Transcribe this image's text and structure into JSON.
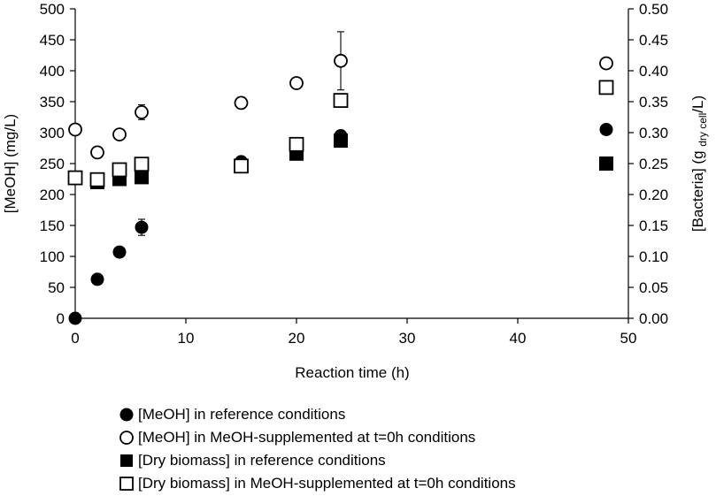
{
  "chart_data": {
    "type": "scatter",
    "xlabel": "Reaction time (h)",
    "ylabel_left": "[MeOH] (mg/L)",
    "ylabel_right_parts": [
      "[Bacteria] (g ",
      "dry cell",
      "/L)"
    ],
    "xlim": [
      0,
      50
    ],
    "ylim_left": [
      0,
      500
    ],
    "ylim_right": [
      0,
      0.5
    ],
    "x_ticks": [
      "0",
      "10",
      "20",
      "30",
      "40",
      "50"
    ],
    "y_left_ticks": [
      "0",
      "50",
      "100",
      "150",
      "200",
      "250",
      "300",
      "350",
      "400",
      "450",
      "500"
    ],
    "y_right_ticks": [
      "0.00",
      "0.05",
      "0.10",
      "0.15",
      "0.20",
      "0.25",
      "0.30",
      "0.35",
      "0.40",
      "0.45",
      "0.50"
    ],
    "series": [
      {
        "name": "[MeOH] in reference conditions",
        "marker": "circle",
        "filled": true,
        "axis": "left",
        "x": [
          0,
          2,
          4,
          6,
          15,
          24,
          48
        ],
        "y": [
          0,
          63,
          107,
          147,
          253,
          295,
          305
        ],
        "err": [
          0,
          0,
          0,
          13,
          0,
          0,
          0
        ]
      },
      {
        "name": "[MeOH] in MeOH-supplemented at t=0h conditions",
        "marker": "circle",
        "filled": false,
        "axis": "left",
        "x": [
          0,
          2,
          4,
          6,
          15,
          20,
          24,
          48
        ],
        "y": [
          305,
          268,
          297,
          333,
          348,
          380,
          416,
          412
        ],
        "err": [
          0,
          0,
          0,
          12,
          0,
          0,
          47,
          0
        ]
      },
      {
        "name": "[Dry biomass] in reference conditions",
        "marker": "square",
        "filled": true,
        "axis": "right",
        "x": [
          0,
          2,
          4,
          6,
          15,
          20,
          24,
          48
        ],
        "y": [
          0.227,
          0.22,
          0.225,
          0.228,
          0.246,
          0.266,
          0.287,
          0.25
        ],
        "err": [
          0,
          0,
          0,
          0,
          0,
          0,
          0,
          0
        ]
      },
      {
        "name": "[Dry biomass] in MeOH-supplemented at t=0h conditions",
        "marker": "square",
        "filled": false,
        "axis": "right",
        "x": [
          0,
          2,
          4,
          6,
          15,
          20,
          24,
          48
        ],
        "y": [
          0.227,
          0.224,
          0.24,
          0.249,
          0.246,
          0.281,
          0.352,
          0.373
        ],
        "err": [
          0,
          0,
          0,
          0,
          0,
          0,
          0,
          0
        ]
      }
    ]
  }
}
